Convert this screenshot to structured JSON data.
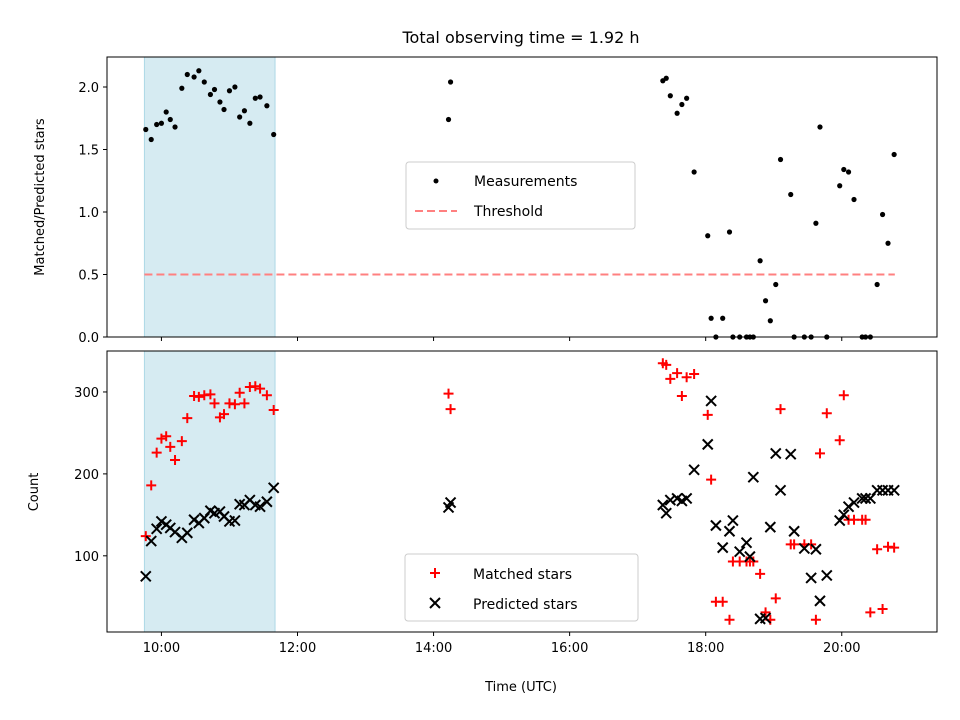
{
  "chart_data": [
    {
      "type": "scatter",
      "title": "Total observing time = 1.92 h",
      "ylabel": "Matched/Predicted stars",
      "xlabel": "",
      "xlim": [
        9.2,
        21.4
      ],
      "ylim": [
        0,
        2.24
      ],
      "xticks": [
        10,
        12,
        14,
        16,
        18,
        20
      ],
      "yticks": [
        0.0,
        0.5,
        1.0,
        1.5,
        2.0
      ],
      "ytick_labels": [
        "0.0",
        "0.5",
        "1.0",
        "1.5",
        "2.0"
      ],
      "grid": false,
      "legend_position": "center",
      "shaded_interval": {
        "x": [
          9.75,
          11.67
        ],
        "color": "#add8e6"
      },
      "series": [
        {
          "name": "Measurements",
          "color": "#000000",
          "marker": "dot",
          "x": [
            9.77,
            9.85,
            9.93,
            10.0,
            10.07,
            10.13,
            10.2,
            10.3,
            10.38,
            10.48,
            10.55,
            10.63,
            10.72,
            10.78,
            10.86,
            10.92,
            11.0,
            11.08,
            11.15,
            11.22,
            11.3,
            11.38,
            11.45,
            11.55,
            11.65,
            14.22,
            14.25,
            17.37,
            17.42,
            17.48,
            17.58,
            17.65,
            17.72,
            17.83,
            18.03,
            18.08,
            18.15,
            18.25,
            18.35,
            18.4,
            18.5,
            18.6,
            18.65,
            18.7,
            18.8,
            18.88,
            18.95,
            19.03,
            19.1,
            19.25,
            19.3,
            19.45,
            19.55,
            19.62,
            19.68,
            19.78,
            19.97,
            20.03,
            20.1,
            20.18,
            20.3,
            20.35,
            20.42,
            20.52,
            20.6,
            20.68,
            20.77
          ],
          "y": [
            1.66,
            1.58,
            1.7,
            1.71,
            1.8,
            1.74,
            1.68,
            1.99,
            2.1,
            2.08,
            2.13,
            2.04,
            1.94,
            1.98,
            1.88,
            1.82,
            1.97,
            2.0,
            1.76,
            1.81,
            1.71,
            1.91,
            1.92,
            1.85,
            1.62,
            1.74,
            2.04,
            2.05,
            2.07,
            1.93,
            1.79,
            1.86,
            1.91,
            1.32,
            0.81,
            0.15,
            0.0,
            0.15,
            0.84,
            0.0,
            0.0,
            0.0,
            0.0,
            0.0,
            0.61,
            0.29,
            0.13,
            0.42,
            1.42,
            1.14,
            0.0,
            0.0,
            0.0,
            0.91,
            1.68,
            0.0,
            1.21,
            1.34,
            1.32,
            1.1,
            0.0,
            0.0,
            0.0,
            0.42,
            0.98,
            0.75,
            1.46
          ]
        },
        {
          "name": "Threshold",
          "color": "#ff8080",
          "style": "dashed",
          "x": [
            9.75,
            20.78
          ],
          "y": [
            0.5,
            0.5
          ]
        }
      ]
    },
    {
      "type": "scatter",
      "title": "",
      "xlabel": "Time (UTC)",
      "ylabel": "Count",
      "xlim": [
        9.2,
        21.4
      ],
      "ylim": [
        7,
        350
      ],
      "xticks": [
        10,
        12,
        14,
        16,
        18,
        20
      ],
      "xtick_labels": [
        "10:00",
        "12:00",
        "14:00",
        "16:00",
        "18:00",
        "20:00"
      ],
      "yticks": [
        100,
        200,
        300
      ],
      "ytick_labels": [
        "100",
        "200",
        "300"
      ],
      "grid": false,
      "legend_position": "lower center",
      "shaded_interval": {
        "x": [
          9.75,
          11.67
        ],
        "color": "#add8e6"
      },
      "series": [
        {
          "name": "Matched stars",
          "color": "#ff0000",
          "marker": "plus",
          "x": [
            9.77,
            9.85,
            9.93,
            10.0,
            10.07,
            10.13,
            10.2,
            10.3,
            10.38,
            10.48,
            10.55,
            10.63,
            10.72,
            10.78,
            10.86,
            10.92,
            11.0,
            11.08,
            11.15,
            11.22,
            11.3,
            11.38,
            11.45,
            11.55,
            11.65,
            14.22,
            14.25,
            17.37,
            17.42,
            17.48,
            17.58,
            17.65,
            17.72,
            17.83,
            18.03,
            18.08,
            18.15,
            18.25,
            18.35,
            18.4,
            18.5,
            18.6,
            18.65,
            18.7,
            18.8,
            18.88,
            18.95,
            19.03,
            19.1,
            19.25,
            19.3,
            19.45,
            19.55,
            19.62,
            19.68,
            19.78,
            19.97,
            20.03,
            20.1,
            20.18,
            20.3,
            20.35,
            20.42,
            20.52,
            20.6,
            20.68,
            20.77
          ],
          "y": [
            124,
            186,
            226,
            243,
            246,
            233,
            217,
            240,
            268,
            295,
            294,
            296,
            297,
            286,
            269,
            273,
            286,
            285,
            299,
            286,
            306,
            307,
            304,
            296,
            278,
            298,
            279,
            335,
            333,
            316,
            323,
            295,
            318,
            322,
            272,
            193,
            44,
            44,
            22,
            93,
            93,
            93,
            93,
            93,
            78,
            31,
            22,
            48,
            279,
            114,
            114,
            114,
            114,
            22,
            225,
            274,
            241,
            296,
            144,
            144,
            144,
            144,
            31,
            108,
            35,
            111,
            110
          ]
        },
        {
          "name": "Predicted stars",
          "color": "#000000",
          "marker": "x",
          "x": [
            9.77,
            9.85,
            9.93,
            10.0,
            10.07,
            10.13,
            10.2,
            10.3,
            10.38,
            10.48,
            10.55,
            10.63,
            10.72,
            10.78,
            10.86,
            10.92,
            11.0,
            11.08,
            11.15,
            11.22,
            11.3,
            11.38,
            11.45,
            11.55,
            11.65,
            14.22,
            14.25,
            17.37,
            17.42,
            17.48,
            17.58,
            17.65,
            17.72,
            17.83,
            18.03,
            18.08,
            18.15,
            18.25,
            18.35,
            18.4,
            18.5,
            18.6,
            18.65,
            18.7,
            18.8,
            18.88,
            18.95,
            19.03,
            19.1,
            19.25,
            19.3,
            19.45,
            19.55,
            19.62,
            19.68,
            19.78,
            19.97,
            20.03,
            20.1,
            20.18,
            20.3,
            20.35,
            20.42,
            20.52,
            20.6,
            20.68,
            20.77
          ],
          "y": [
            75,
            118,
            133,
            142,
            138,
            134,
            129,
            122,
            128,
            144,
            140,
            146,
            155,
            152,
            154,
            148,
            142,
            143,
            163,
            162,
            168,
            162,
            160,
            166,
            183,
            159,
            165,
            162,
            152,
            168,
            170,
            167,
            170,
            205,
            236,
            289,
            137,
            110,
            130,
            143,
            105,
            116,
            99,
            196,
            23,
            24,
            135,
            225,
            180,
            224,
            130,
            109,
            73,
            108,
            45,
            76,
            143,
            150,
            160,
            165,
            170,
            170,
            170,
            180,
            180,
            180,
            180
          ]
        }
      ]
    }
  ]
}
